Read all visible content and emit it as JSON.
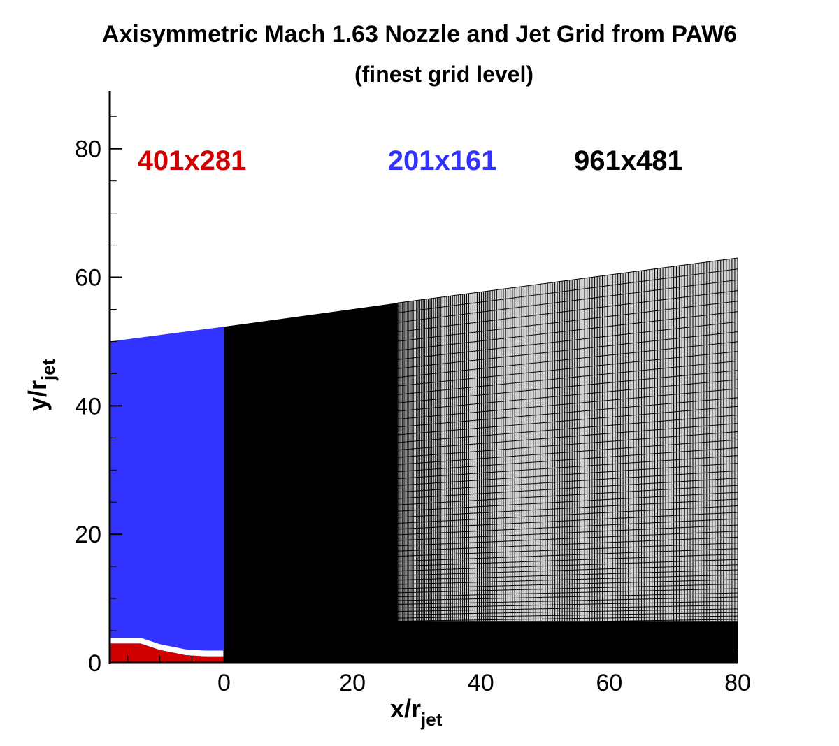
{
  "chart_data": {
    "type": "area",
    "title": "Axisymmetric Mach 1.63 Nozzle and Jet Grid from PAW6",
    "subtitle": "(finest grid level)",
    "xlabel": {
      "main": "x/r",
      "sub": "jet"
    },
    "ylabel": {
      "main": "y/r",
      "sub": "jet"
    },
    "xlim": [
      -17.8,
      80
    ],
    "ylim": [
      0,
      89
    ],
    "xticks": [
      0,
      20,
      40,
      60,
      80
    ],
    "yticks": [
      0,
      20,
      40,
      60,
      80
    ],
    "grid": false,
    "annotations": [
      {
        "text": "401x281",
        "color": "#d00000",
        "x": -5,
        "y": 78
      },
      {
        "text": "201x161",
        "color": "#3333ff",
        "x": 34,
        "y": 78
      },
      {
        "text": "961x481",
        "color": "#000000",
        "x": 63,
        "y": 78
      }
    ],
    "regions": [
      {
        "name": "201x161",
        "color": "#3333ff",
        "x": [
          -17.8,
          0
        ],
        "top": [
          50.0,
          52.3
        ],
        "bottom": [
          0,
          0
        ]
      },
      {
        "name": "401x281",
        "color": "#d00000",
        "x": [
          -17.8,
          -13,
          -10,
          -6,
          -3,
          0
        ],
        "top": [
          3.0,
          3.0,
          2.0,
          1.2,
          1.0,
          1.0
        ]
      },
      {
        "name": "961x481",
        "color": "#000000",
        "x": [
          0,
          27,
          80
        ],
        "top": [
          52.3,
          56.0,
          63.0
        ],
        "fill_dense": "#000000",
        "fill_sparse": "#d3d3d3"
      }
    ]
  }
}
